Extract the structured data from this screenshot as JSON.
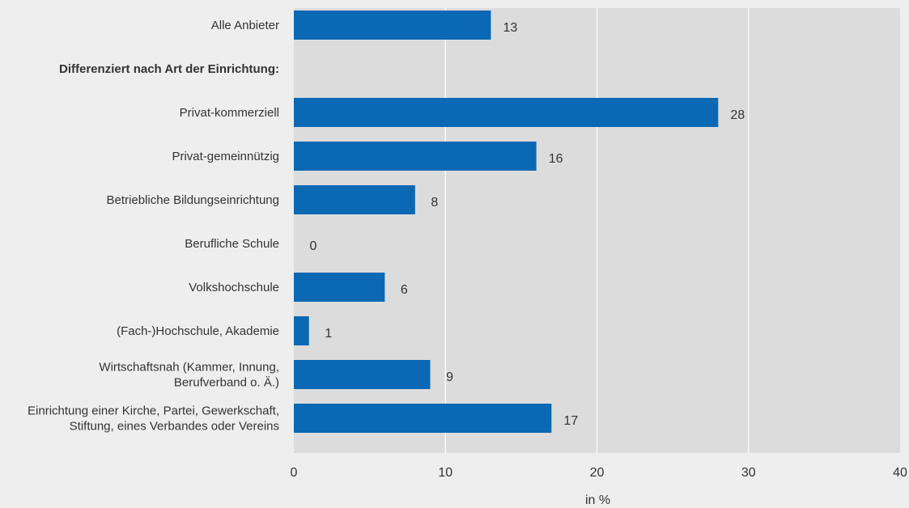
{
  "chart_data": {
    "type": "bar",
    "orientation": "horizontal",
    "xlabel": "in %",
    "ylabel": "",
    "xlim": [
      0,
      40
    ],
    "xticks": [
      0,
      10,
      20,
      30,
      40
    ],
    "grid": "vertical",
    "bar_color": "#0a68b4",
    "plot_background": "#dcdcdc",
    "categories": [
      {
        "label": [
          "Alle Anbieter"
        ],
        "value": 13,
        "value_label": "13"
      },
      {
        "label": [
          "Differenziert nach Art der Einrichtung:"
        ],
        "heading": true
      },
      {
        "label": [
          "Privat-kommerziell"
        ],
        "value": 28,
        "value_label": "28"
      },
      {
        "label": [
          "Privat-gemeinnützig"
        ],
        "value": 16,
        "value_label": "16"
      },
      {
        "label": [
          "Betriebliche Bildungseinrichtung"
        ],
        "value": 8,
        "value_label": "8"
      },
      {
        "label": [
          "Berufliche Schule"
        ],
        "value": 0,
        "value_label": "0"
      },
      {
        "label": [
          "Volkshochschule"
        ],
        "value": 6,
        "value_label": "6"
      },
      {
        "label": [
          "(Fach-)Hochschule, Akademie"
        ],
        "value": 1,
        "value_label": "1"
      },
      {
        "label": [
          "Wirtschaftsnah (Kammer, Innung,",
          "Berufverband o. Ä.)"
        ],
        "value": 9,
        "value_label": "9"
      },
      {
        "label": [
          "Einrichtung einer Kirche, Partei, Gewerkschaft,",
          "Stiftung, eines Verbandes oder Vereins"
        ],
        "value": 17,
        "value_label": "17"
      }
    ]
  }
}
